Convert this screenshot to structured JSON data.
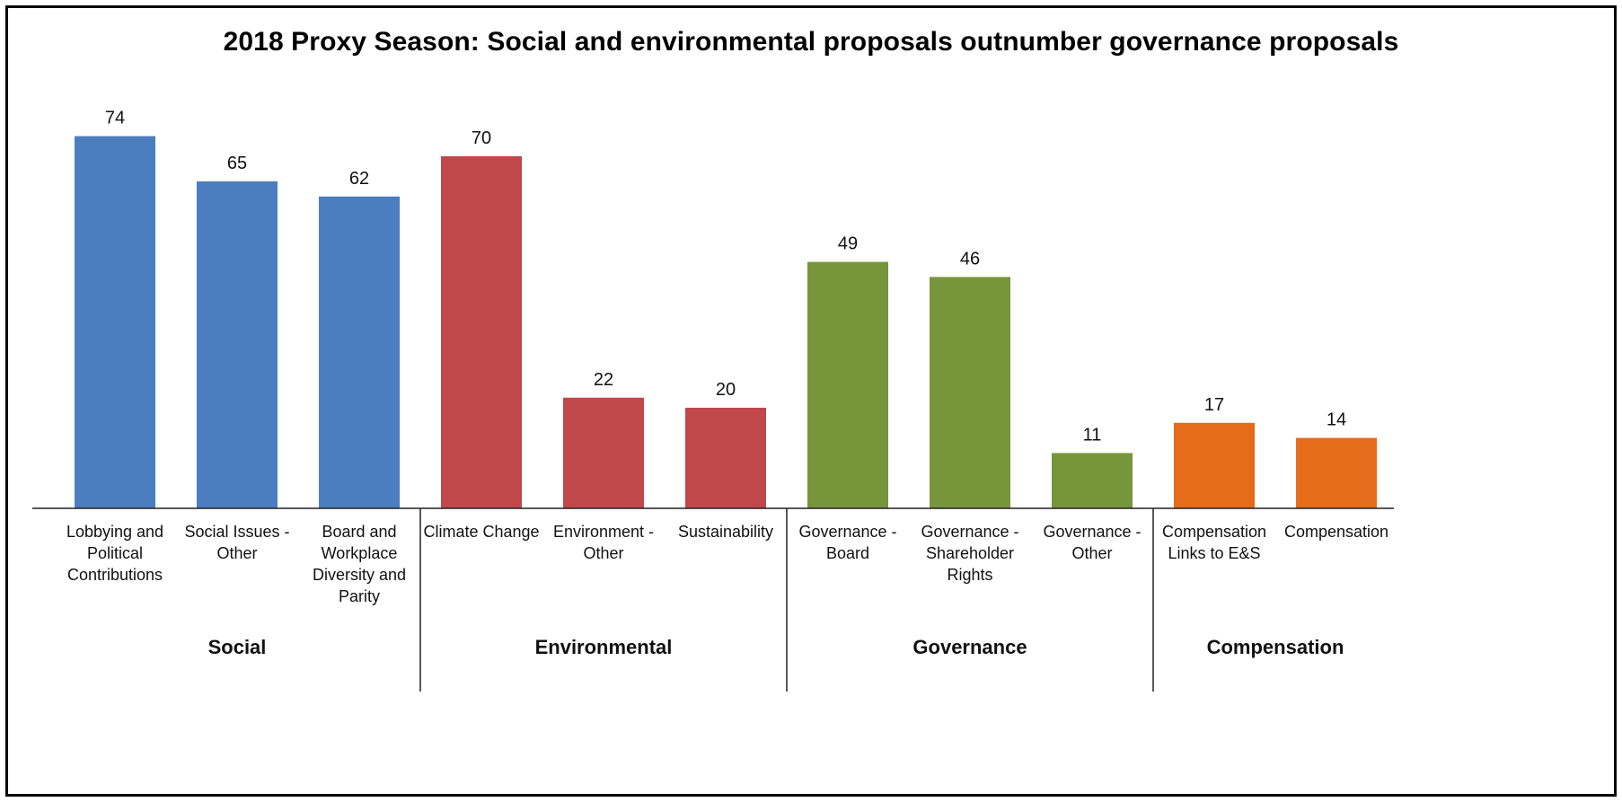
{
  "chart_data": {
    "type": "bar",
    "title": "2018 Proxy Season: Social and environmental proposals outnumber governance proposals",
    "xlabel": "",
    "ylabel": "",
    "ylim": [
      0,
      80
    ],
    "grid": false,
    "legend": "none",
    "groups": [
      {
        "name": "Social",
        "color": "#4a7ebf",
        "bars": [
          {
            "label": [
              "Lobbying and",
              "Political",
              "Contributions"
            ],
            "value": 74
          },
          {
            "label": [
              "Social Issues -",
              "Other"
            ],
            "value": 65
          },
          {
            "label": [
              "Board and",
              "Workplace",
              "Diversity and",
              "Parity"
            ],
            "value": 62
          }
        ]
      },
      {
        "name": "Environmental",
        "color": "#c0474a",
        "bars": [
          {
            "label": [
              "Climate Change"
            ],
            "value": 70
          },
          {
            "label": [
              "Environment -",
              "Other"
            ],
            "value": 22
          },
          {
            "label": [
              "Sustainability"
            ],
            "value": 20
          }
        ]
      },
      {
        "name": "Governance",
        "color": "#77953b",
        "bars": [
          {
            "label": [
              "Governance -",
              "Board"
            ],
            "value": 49
          },
          {
            "label": [
              "Governance -",
              "Shareholder",
              "Rights"
            ],
            "value": 46
          },
          {
            "label": [
              "Governance -",
              "Other"
            ],
            "value": 11
          }
        ]
      },
      {
        "name": "Compensation",
        "color": "#e46c1b",
        "bars": [
          {
            "label": [
              "Compensation",
              "Links to E&S"
            ],
            "value": 17
          },
          {
            "label": [
              "Compensation"
            ],
            "value": 14
          }
        ]
      }
    ]
  }
}
